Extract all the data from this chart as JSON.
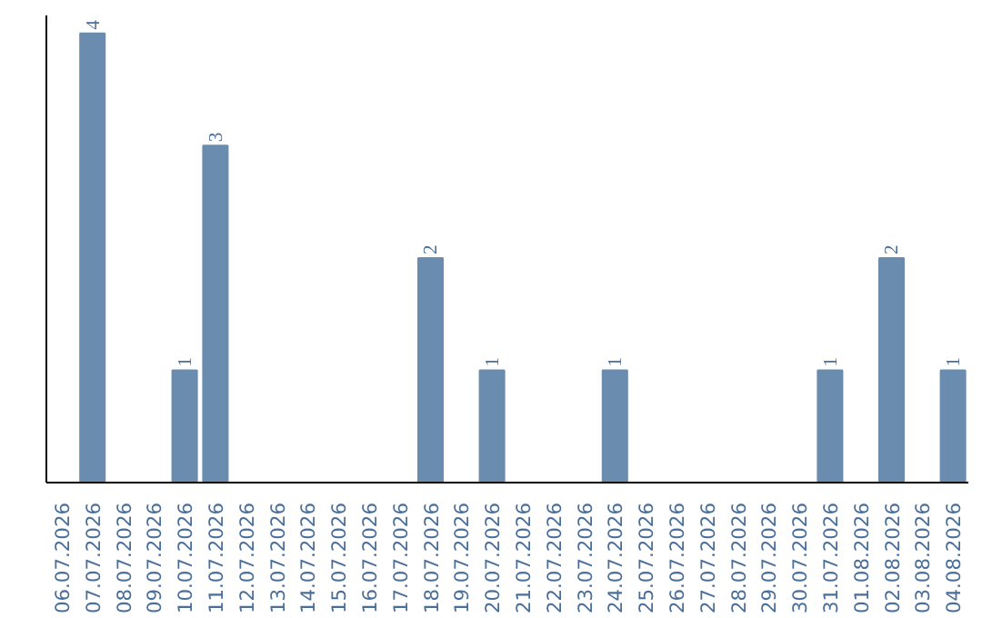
{
  "chart_data": {
    "type": "bar",
    "relative": false,
    "categories": [
      "06.07.2026",
      "07.07.2026",
      "08.07.2026",
      "09.07.2026",
      "10.07.2026",
      "11.07.2026",
      "12.07.2026",
      "13.07.2026",
      "14.07.2026",
      "15.07.2026",
      "16.07.2026",
      "17.07.2026",
      "18.07.2026",
      "19.07.2026",
      "20.07.2026",
      "21.07.2026",
      "22.07.2026",
      "23.07.2026",
      "24.07.2026",
      "25.07.2026",
      "26.07.2026",
      "27.07.2026",
      "28.07.2026",
      "29.07.2026",
      "30.07.2026",
      "31.07.2026",
      "01.08.2026",
      "02.08.2026",
      "03.08.2026",
      "04.08.2026"
    ],
    "values": [
      0,
      4,
      0,
      0,
      1,
      3,
      0,
      0,
      0,
      0,
      0,
      0,
      2,
      0,
      1,
      0,
      0,
      0,
      1,
      0,
      0,
      0,
      0,
      0,
      0,
      1,
      0,
      2,
      0,
      1
    ],
    "value_labels": [
      null,
      "4",
      null,
      null,
      "1",
      "3",
      null,
      null,
      null,
      null,
      null,
      null,
      "2",
      null,
      "1",
      null,
      null,
      null,
      "1",
      null,
      null,
      null,
      null,
      null,
      null,
      "1",
      null,
      "2",
      null,
      "1"
    ],
    "color": "#6a8caf",
    "grid": false
  }
}
